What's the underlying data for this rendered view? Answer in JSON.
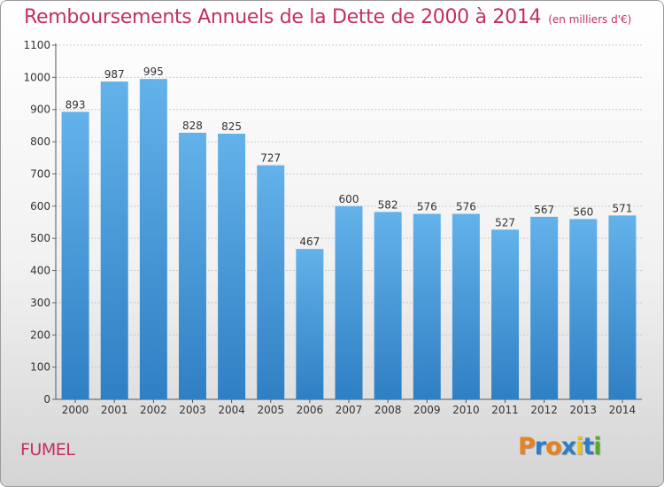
{
  "chart_data": {
    "type": "bar",
    "title": "Remboursements Annuels de la Dette de 2000 à 2014",
    "unit_note": "(en milliers d'€)",
    "categories": [
      "2000",
      "2001",
      "2002",
      "2003",
      "2004",
      "2005",
      "2006",
      "2007",
      "2008",
      "2009",
      "2010",
      "2011",
      "2012",
      "2013",
      "2014"
    ],
    "values": [
      893,
      987,
      995,
      828,
      825,
      727,
      467,
      600,
      582,
      576,
      576,
      527,
      567,
      560,
      571
    ],
    "yticks": [
      0,
      100,
      200,
      300,
      400,
      500,
      600,
      700,
      800,
      900,
      1000,
      1100
    ],
    "ylim": [
      0,
      1100
    ],
    "grid": true,
    "xlabel": "",
    "ylabel": ""
  },
  "footer": {
    "city": "FUMEL",
    "logo_letters": [
      "P",
      "r",
      "o",
      "x",
      "i",
      "t",
      "i"
    ],
    "logo_colors": [
      "#e8821e",
      "#2a7fc9",
      "#e8821e",
      "#2a7fc9",
      "#e8c21e",
      "#2a7fc9",
      "#5aaa2a"
    ]
  },
  "colors": {
    "accent": "#c4305e",
    "bar_top": "#63b2ea",
    "bar_bottom": "#2f7fc4"
  }
}
